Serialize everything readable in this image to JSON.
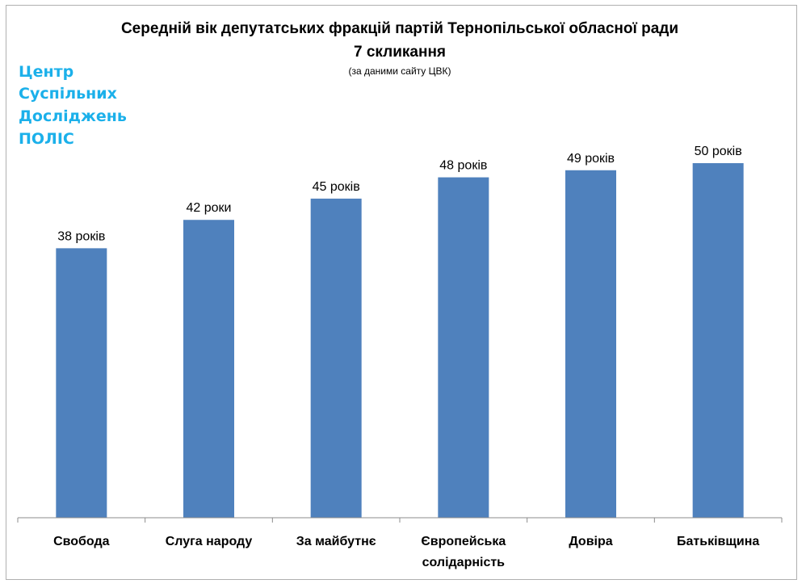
{
  "watermark": {
    "lines": [
      "Центр",
      "Суспільних",
      "Досліджень",
      "ПОЛІС"
    ]
  },
  "colors": {
    "bar": "#4f81bd",
    "axis": "#8c8c8c",
    "watermark": "#1bb0ea"
  },
  "chart_data": {
    "type": "bar",
    "title": "Середній вік депутатських фракцій партій Тернопільської обласної ради",
    "title_line2": "7 скликання",
    "subtitle": "(за даними сайту ЦВК)",
    "xlabel": "",
    "ylabel": "",
    "categories": [
      [
        "Свобода"
      ],
      [
        "Слуга народу"
      ],
      [
        "За майбутнє"
      ],
      [
        "Європейська",
        "солідарність"
      ],
      [
        "Довіра"
      ],
      [
        "Батьківщина"
      ]
    ],
    "values": [
      38,
      42,
      45,
      48,
      49,
      50
    ],
    "data_labels": [
      "38 років",
      "42 роки",
      "45 років",
      "48 років",
      "49 років",
      "50 років"
    ],
    "ylim": [
      0,
      50
    ],
    "grid": false,
    "legend": "none"
  }
}
